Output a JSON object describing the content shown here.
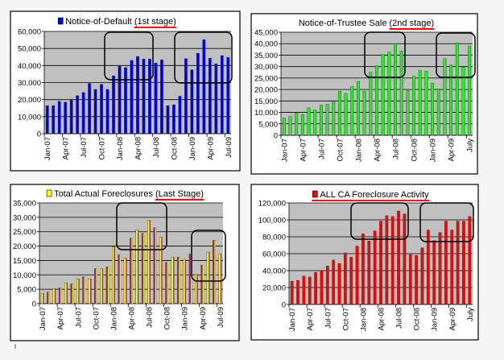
{
  "chart_data": [
    {
      "type": "bar",
      "title": "Notice-of-Default",
      "title_emphasis": "(1st stage)",
      "legend": true,
      "color": "#0000ee",
      "ylim": [
        0,
        60000
      ],
      "yticks": [
        "0",
        "10,000",
        "20,000",
        "30,000",
        "40,000",
        "50,000",
        "60,000"
      ],
      "categories": [
        "Jan-07",
        "Feb-07",
        "Mar-07",
        "Apr-07",
        "May-07",
        "Jun-07",
        "Jul-07",
        "Aug-07",
        "Sep-07",
        "Oct-07",
        "Nov-07",
        "Dec-07",
        "Jan-08",
        "Feb-08",
        "Mar-08",
        "Apr-08",
        "May-08",
        "Jun-08",
        "Jul-08",
        "Aug-08",
        "Sep-08",
        "Oct-08",
        "Nov-08",
        "Dec-08",
        "Jan-09",
        "Feb-09",
        "Mar-09",
        "Apr-09",
        "May-09",
        "Jun-09",
        "Jul-09"
      ],
      "tick_labels": [
        "Jan-07",
        "Apr-07",
        "Jul-07",
        "Oct-07",
        "Jan-08",
        "Apr-08",
        "Jul-08",
        "Oct-08",
        "Jan-09",
        "Apr-09",
        "Jul-09"
      ],
      "values": [
        16500,
        16500,
        19000,
        18500,
        19800,
        22300,
        24200,
        29500,
        26000,
        29000,
        26000,
        34000,
        40000,
        38800,
        43000,
        45300,
        43800,
        43800,
        41500,
        43300,
        16500,
        17000,
        22000,
        44000,
        37500,
        47200,
        55200,
        44300,
        41000,
        45800,
        44800
      ],
      "grid": true
    },
    {
      "type": "bar",
      "title": "Notice-of-Trustee Sale",
      "title_emphasis": "(2nd stage)",
      "legend": false,
      "color": "#22ee22",
      "ylim": [
        0,
        45000
      ],
      "yticks": [
        "0",
        "5,000",
        "10,000",
        "15,000",
        "20,000",
        "25,000",
        "30,000",
        "35,000",
        "40,000",
        "45,000"
      ],
      "categories": [
        "Jan-07",
        "Feb-07",
        "Mar-07",
        "Apr-07",
        "May-07",
        "Jun-07",
        "Jul-07",
        "Aug-07",
        "Sep-07",
        "Oct-07",
        "Nov-07",
        "Dec-07",
        "Jan-08",
        "Feb-08",
        "Mar-08",
        "Apr-08",
        "May-08",
        "Jun-08",
        "Jul-08",
        "Aug-08",
        "Sep-08",
        "Oct-08",
        "Nov-08",
        "Dec-08",
        "Jan-09",
        "Feb-09",
        "Mar-09",
        "Apr-09",
        "May-09",
        "Jun-09",
        "July"
      ],
      "tick_labels": [
        "Jan-07",
        "Apr-07",
        "Jul-07",
        "Oct-07",
        "Jan-08",
        "Apr-08",
        "Jul-08",
        "Oct-08",
        "Jan-09",
        "Apr-09",
        "July"
      ],
      "values": [
        7500,
        8200,
        9700,
        9000,
        12000,
        11000,
        13200,
        13500,
        14500,
        19300,
        18300,
        21300,
        23500,
        19300,
        27500,
        30300,
        35300,
        36300,
        40000,
        36800,
        19500,
        25800,
        28300,
        28000,
        22800,
        20300,
        33500,
        30700,
        40300,
        29700,
        39000
      ],
      "grid": true
    },
    {
      "type": "bar",
      "title": "Total Actual Foreclosures",
      "title_emphasis": "(Last Stage)",
      "legend": true,
      "color": "#ffff00",
      "color_alt": "#993366",
      "ylim": [
        0,
        35000
      ],
      "yticks": [
        "0",
        "5,000",
        "10,000",
        "15,000",
        "20,000",
        "25,000",
        "30,000",
        "35,000"
      ],
      "categories": [
        "Jan-07",
        "Feb-07",
        "Mar-07",
        "Apr-07",
        "May-07",
        "Jun-07",
        "Jul-07",
        "Aug-07",
        "Sep-07",
        "Oct-07",
        "Nov-07",
        "Dec-07",
        "Jan-08",
        "Feb-08",
        "Mar-08",
        "Apr-08",
        "May-08",
        "Jun-08",
        "Jul-08",
        "Aug-08",
        "Sep-08",
        "Oct-08",
        "Nov-08",
        "Dec-08",
        "Jan-09",
        "Feb-09",
        "Mar-09",
        "Apr-09",
        "May-09",
        "Jun-09",
        "Jul-09"
      ],
      "tick_labels": [
        "Jan-07",
        "Apr-07",
        "Jul-07",
        "Oct-07",
        "Jan-08",
        "Apr-08",
        "Jul-08",
        "Oct-08",
        "Jan-09",
        "Apr-09",
        "Jul-09"
      ],
      "values": [
        3500,
        4000,
        5200,
        5500,
        7200,
        6900,
        8600,
        9300,
        8600,
        12200,
        12200,
        12800,
        19800,
        17000,
        15900,
        22800,
        25600,
        24500,
        29000,
        26400,
        23100,
        14300,
        16200,
        16200,
        15400,
        17300,
        10200,
        13400,
        17900,
        22000,
        17300
      ],
      "grid": true
    },
    {
      "type": "bar",
      "title": "ALL CA Foreclosure Activity",
      "title_emphasis": "",
      "legend": true,
      "color": "#ff0000",
      "ylim": [
        0,
        120000
      ],
      "yticks": [
        "0",
        "20,000",
        "40,000",
        "60,000",
        "80,000",
        "100,000",
        "120,000"
      ],
      "categories": [
        "Jan-07",
        "Feb-07",
        "Mar-07",
        "Apr-07",
        "May-07",
        "Jun-07",
        "Jul-07",
        "Aug-07",
        "Sep-07",
        "Oct-07",
        "Nov-07",
        "Dec-07",
        "Jan-08",
        "Feb-08",
        "Mar-08",
        "Apr-08",
        "May-08",
        "Jun-08",
        "Jul-08",
        "Aug-08",
        "Sep-08",
        "Oct-08",
        "Nov-08",
        "Dec-08",
        "Jan-09",
        "Feb-09",
        "Mar-09",
        "Apr-09",
        "May-09",
        "Jun-09",
        "July"
      ],
      "tick_labels": [
        "Jan-07",
        "Apr-07",
        "Jul-07",
        "Oct-07",
        "Jan-08",
        "Apr-08",
        "Jul-08",
        "Oct-08",
        "Jan-09",
        "Apr-09",
        "July"
      ],
      "values": [
        27500,
        28500,
        33500,
        32500,
        38000,
        40000,
        45500,
        52500,
        48500,
        61000,
        56000,
        69000,
        83500,
        75000,
        87000,
        98500,
        105000,
        104000,
        110500,
        107000,
        59000,
        58000,
        67000,
        88000,
        75500,
        85000,
        98500,
        88000,
        98500,
        98500,
        104000
      ],
      "grid": true
    }
  ]
}
